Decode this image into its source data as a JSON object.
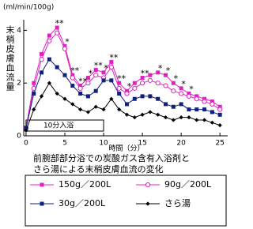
{
  "chart_data": {
    "type": "line",
    "y_unit": "(ml/min/100g)",
    "ylabel": "末梢皮膚血流量",
    "xlabel": "時間（分）",
    "caption": [
      "前腕部部分浴での炭酸ガス含有入浴剤と",
      "さら湯による末梢皮膚血流の変化"
    ],
    "x": [
      0,
      1,
      2,
      3,
      4,
      5,
      6,
      7,
      8,
      9,
      10,
      11,
      12,
      13,
      14,
      15,
      16,
      17,
      18,
      19,
      20,
      21,
      22,
      23,
      24,
      25
    ],
    "series": [
      {
        "name": "150g／200L",
        "color": "#e020c0",
        "marker": "square-filled",
        "values": [
          0.3,
          2.0,
          3.1,
          3.8,
          4.1,
          3.4,
          2.3,
          1.9,
          2.2,
          2.5,
          2.4,
          2.8,
          2.0,
          1.7,
          2.0,
          2.2,
          2.3,
          2.4,
          2.3,
          2.0,
          1.8,
          1.6,
          1.5,
          1.4,
          1.3,
          1.1
        ]
      },
      {
        "name": "90g／200L",
        "color": "#e020c0",
        "marker": "circle-open",
        "values": [
          0.3,
          1.8,
          2.9,
          3.6,
          3.9,
          3.3,
          2.2,
          1.8,
          2.0,
          2.3,
          2.2,
          2.6,
          1.8,
          1.6,
          1.8,
          2.0,
          2.1,
          2.0,
          1.9,
          1.7,
          1.6,
          1.5,
          1.4,
          1.3,
          1.2,
          1.0
        ]
      },
      {
        "name": "30g／200L",
        "color": "#102080",
        "marker": "square-filled",
        "values": [
          0.3,
          1.6,
          2.4,
          2.9,
          2.6,
          2.3,
          1.9,
          1.6,
          1.5,
          1.7,
          2.1,
          2.1,
          1.6,
          1.2,
          1.4,
          1.5,
          1.5,
          1.4,
          1.2,
          1.1,
          1.2,
          1.0,
          1.0,
          1.0,
          0.9,
          0.8
        ]
      },
      {
        "name": "さら湯",
        "color": "#000000",
        "marker": "diamond-filled",
        "values": [
          0.2,
          1.0,
          1.5,
          2.0,
          1.6,
          1.4,
          1.2,
          1.0,
          0.9,
          1.1,
          1.0,
          1.4,
          1.0,
          0.8,
          0.7,
          0.8,
          0.9,
          0.8,
          0.7,
          0.6,
          0.7,
          0.7,
          0.6,
          0.6,
          0.5,
          0.4
        ]
      }
    ],
    "xlim": [
      -0.3,
      26
    ],
    "xticks": [
      0,
      5,
      10,
      15,
      20,
      25
    ],
    "ylim": [
      0,
      4.4
    ],
    "yticks": [
      0,
      2,
      4
    ],
    "bath": {
      "label": "10分入浴",
      "start": 0,
      "end": 10
    },
    "significance": [
      {
        "label": "**",
        "x": 4
      },
      {
        "label": "*",
        "x": 5
      },
      {
        "label": "**",
        "x": 6
      },
      {
        "label": "**",
        "x": 7
      },
      {
        "label": "*",
        "x": 8
      },
      {
        "label": "**",
        "x": 9
      },
      {
        "label": "*",
        "x": 10
      },
      {
        "label": "**",
        "x": 11
      },
      {
        "label": "**",
        "x": 12
      },
      {
        "label": "*",
        "x": 13
      },
      {
        "label": "**",
        "x": 15
      },
      {
        "label": "*",
        "x": 17
      },
      {
        "label": "*",
        "x": 18
      },
      {
        "label": "*",
        "x": 19
      },
      {
        "label": "*",
        "x": 20
      },
      {
        "label": "*",
        "x": 21
      }
    ]
  }
}
